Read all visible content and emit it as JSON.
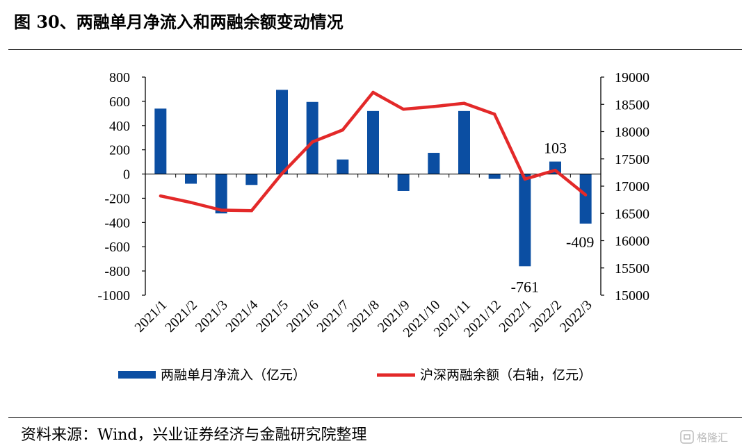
{
  "header": {
    "title": "图 30、两融单月净流入和两融余额变动情况"
  },
  "footer": {
    "source": "资料来源：Wind，兴业证券经济与金融研究院整理",
    "watermark": "格隆汇"
  },
  "colors": {
    "bar": "#0b4ea2",
    "line": "#e32929"
  },
  "chart_data": {
    "type": "bar+line",
    "categories": [
      "2021/1",
      "2021/2",
      "2021/3",
      "2021/4",
      "2021/5",
      "2021/6",
      "2021/7",
      "2021/8",
      "2021/9",
      "2021/10",
      "2021/11",
      "2021/12",
      "2022/1",
      "2022/2",
      "2022/3"
    ],
    "series": [
      {
        "name": "两融单月净流入（亿元）",
        "type": "bar",
        "axis": "left",
        "values": [
          540,
          -80,
          -325,
          -90,
          695,
          595,
          120,
          520,
          -140,
          175,
          520,
          -40,
          -761,
          103,
          -409
        ]
      },
      {
        "name": "沪深两融余额（右轴，亿元）",
        "type": "line",
        "axis": "right",
        "values": [
          16820,
          16700,
          16560,
          16550,
          17230,
          17810,
          18030,
          18720,
          18410,
          18460,
          18520,
          18320,
          17130,
          17290,
          16840
        ]
      }
    ],
    "y_left": {
      "min": -1000,
      "max": 800,
      "ticks": [
        800,
        600,
        400,
        200,
        0,
        -200,
        -400,
        -600,
        -800,
        -1000
      ]
    },
    "y_right": {
      "min": 15000,
      "max": 19000,
      "ticks": [
        19000,
        18500,
        18000,
        17500,
        17000,
        16500,
        16000,
        15500,
        15000
      ]
    },
    "data_labels": [
      {
        "index": 12,
        "text": "-761"
      },
      {
        "index": 13,
        "text": "103"
      },
      {
        "index": 14,
        "text": "-409"
      }
    ],
    "grid": false,
    "legend": "bottom"
  }
}
